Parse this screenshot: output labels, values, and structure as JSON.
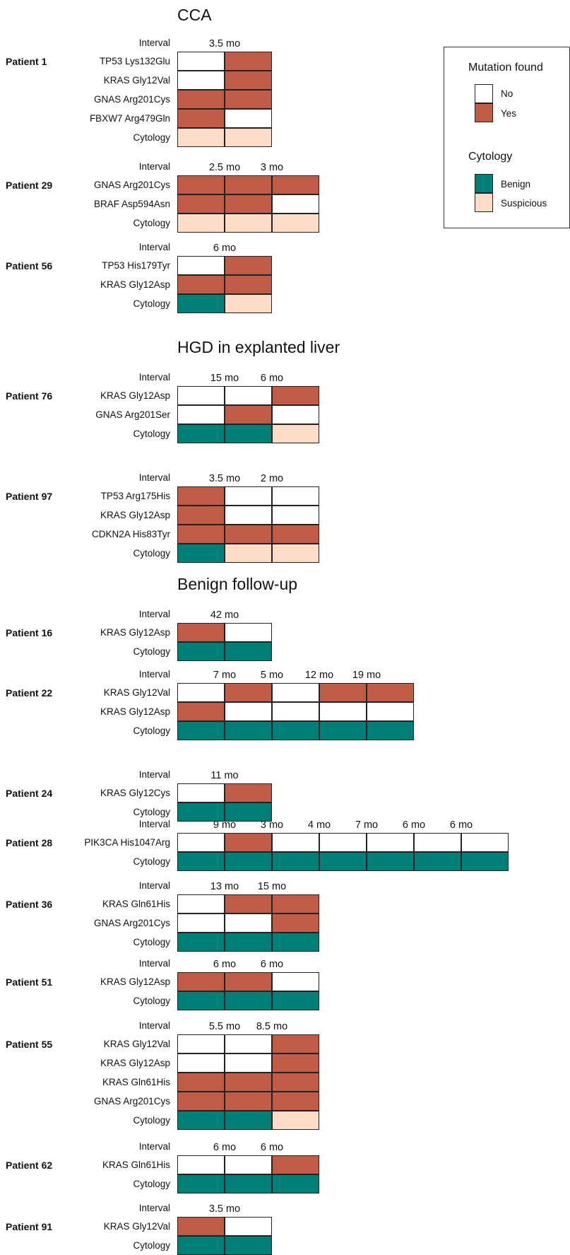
{
  "colors": {
    "no": "#ffffff",
    "yes": "#c05c47",
    "benign": "#007f77",
    "suspicious": "#fcdcc8"
  },
  "legend": {
    "mutation_title": "Mutation found",
    "no_label": "No",
    "yes_label": "Yes",
    "cytology_title": "Cytology",
    "benign_label": "Benign",
    "suspicious_label": "Suspicious"
  },
  "sections": [
    {
      "title": "CCA",
      "patients": [
        {
          "name": "Patient 1",
          "intervals": [
            "3.5 mo"
          ],
          "rows": [
            {
              "label": "TP53 Lys132Glu",
              "cells": [
                "no",
                "yes"
              ]
            },
            {
              "label": "KRAS Gly12Val",
              "cells": [
                "no",
                "yes"
              ]
            },
            {
              "label": "GNAS Arg201Cys",
              "cells": [
                "yes",
                "yes"
              ]
            },
            {
              "label": "FBXW7 Arg479Gln",
              "cells": [
                "yes",
                "no"
              ]
            },
            {
              "label": "Cytology",
              "cells": [
                "suspicious",
                "suspicious"
              ]
            }
          ]
        },
        {
          "name": "Patient 29",
          "intervals": [
            "2.5 mo",
            "3 mo"
          ],
          "rows": [
            {
              "label": "GNAS Arg201Cys",
              "cells": [
                "yes",
                "yes",
                "yes"
              ]
            },
            {
              "label": "BRAF Asp594Asn",
              "cells": [
                "yes",
                "yes",
                "no"
              ]
            },
            {
              "label": "Cytology",
              "cells": [
                "suspicious",
                "suspicious",
                "suspicious"
              ]
            }
          ]
        },
        {
          "name": "Patient 56",
          "intervals": [
            "6 mo"
          ],
          "rows": [
            {
              "label": "TP53 His179Tyr",
              "cells": [
                "no",
                "yes"
              ]
            },
            {
              "label": "KRAS Gly12Asp",
              "cells": [
                "yes",
                "yes"
              ]
            },
            {
              "label": "Cytology",
              "cells": [
                "benign",
                "suspicious"
              ]
            }
          ]
        }
      ]
    },
    {
      "title": "HGD in explanted liver",
      "patients": [
        {
          "name": "Patient 76",
          "intervals": [
            "15 mo",
            "6 mo"
          ],
          "rows": [
            {
              "label": "KRAS Gly12Asp",
              "cells": [
                "no",
                "no",
                "yes"
              ]
            },
            {
              "label": "GNAS Arg201Ser",
              "cells": [
                "no",
                "yes",
                "no"
              ]
            },
            {
              "label": "Cytology",
              "cells": [
                "benign",
                "benign",
                "suspicious"
              ]
            }
          ]
        },
        {
          "name": "Patient 97",
          "intervals": [
            "3.5 mo",
            "2 mo"
          ],
          "rows": [
            {
              "label": "TP53 Arg175His",
              "cells": [
                "yes",
                "no",
                "no"
              ]
            },
            {
              "label": "KRAS Gly12Asp",
              "cells": [
                "yes",
                "no",
                "no"
              ]
            },
            {
              "label": "CDKN2A His83Tyr",
              "cells": [
                "yes",
                "yes",
                "yes"
              ]
            },
            {
              "label": "Cytology",
              "cells": [
                "benign",
                "suspicious",
                "suspicious"
              ]
            }
          ]
        }
      ]
    },
    {
      "title": "Benign follow-up",
      "patients": [
        {
          "name": "Patient 16",
          "intervals": [
            "42 mo"
          ],
          "rows": [
            {
              "label": "KRAS Gly12Asp",
              "cells": [
                "yes",
                "no"
              ]
            },
            {
              "label": "Cytology",
              "cells": [
                "benign",
                "benign"
              ]
            }
          ]
        },
        {
          "name": "Patient 22",
          "intervals": [
            "7 mo",
            "5 mo",
            "12 mo",
            "19 mo"
          ],
          "rows": [
            {
              "label": "KRAS Gly12Val",
              "cells": [
                "no",
                "yes",
                "no",
                "yes",
                "yes"
              ]
            },
            {
              "label": "KRAS Gly12Asp",
              "cells": [
                "yes",
                "no",
                "no",
                "no",
                "no"
              ]
            },
            {
              "label": "Cytology",
              "cells": [
                "benign",
                "benign",
                "benign",
                "benign",
                "benign"
              ]
            }
          ]
        },
        {
          "name": "Patient 24",
          "intervals": [
            "11 mo"
          ],
          "rows": [
            {
              "label": "KRAS Gly12Cys",
              "cells": [
                "no",
                "yes"
              ]
            },
            {
              "label": "Cytology",
              "cells": [
                "benign",
                "benign"
              ]
            }
          ]
        },
        {
          "name": "Patient 28",
          "intervals": [
            "9 mo",
            "3 mo",
            "4 mo",
            "7 mo",
            "6 mo",
            "6 mo"
          ],
          "rows": [
            {
              "label": "PIK3CA His1047Arg",
              "cells": [
                "no",
                "yes",
                "no",
                "no",
                "no",
                "no",
                "no"
              ]
            },
            {
              "label": "Cytology",
              "cells": [
                "benign",
                "benign",
                "benign",
                "benign",
                "benign",
                "benign",
                "benign"
              ]
            }
          ]
        },
        {
          "name": "Patient 36",
          "intervals": [
            "13 mo",
            "15 mo"
          ],
          "rows": [
            {
              "label": "KRAS Gln61His",
              "cells": [
                "no",
                "yes",
                "yes"
              ]
            },
            {
              "label": "GNAS Arg201Cys",
              "cells": [
                "no",
                "no",
                "yes"
              ]
            },
            {
              "label": "Cytology",
              "cells": [
                "benign",
                "benign",
                "benign"
              ]
            }
          ]
        },
        {
          "name": "Patient 51",
          "intervals": [
            "6 mo",
            "6 mo"
          ],
          "rows": [
            {
              "label": "KRAS Gly12Asp",
              "cells": [
                "yes",
                "yes",
                "no"
              ]
            },
            {
              "label": "Cytology",
              "cells": [
                "benign",
                "benign",
                "benign"
              ]
            }
          ]
        },
        {
          "name": "Patient 55",
          "intervals": [
            "5.5 mo",
            "8.5 mo"
          ],
          "rows": [
            {
              "label": "KRAS Gly12Val",
              "cells": [
                "no",
                "no",
                "yes"
              ]
            },
            {
              "label": "KRAS Gly12Asp",
              "cells": [
                "no",
                "no",
                "yes"
              ]
            },
            {
              "label": "KRAS Gln61His",
              "cells": [
                "yes",
                "yes",
                "yes"
              ]
            },
            {
              "label": "GNAS Arg201Cys",
              "cells": [
                "yes",
                "yes",
                "yes"
              ]
            },
            {
              "label": "Cytology",
              "cells": [
                "benign",
                "benign",
                "suspicious"
              ]
            }
          ]
        },
        {
          "name": "Patient 62",
          "intervals": [
            "6 mo",
            "6 mo"
          ],
          "rows": [
            {
              "label": "KRAS Gln61His",
              "cells": [
                "no",
                "no",
                "yes"
              ]
            },
            {
              "label": "Cytology",
              "cells": [
                "benign",
                "benign",
                "benign"
              ]
            }
          ]
        },
        {
          "name": "Patient 91",
          "intervals": [
            "3.5 mo"
          ],
          "rows": [
            {
              "label": "KRAS Gly12Val",
              "cells": [
                "yes",
                "no"
              ]
            },
            {
              "label": "Cytology",
              "cells": [
                "benign",
                "benign"
              ]
            }
          ]
        }
      ]
    }
  ],
  "interval_label": "Interval"
}
